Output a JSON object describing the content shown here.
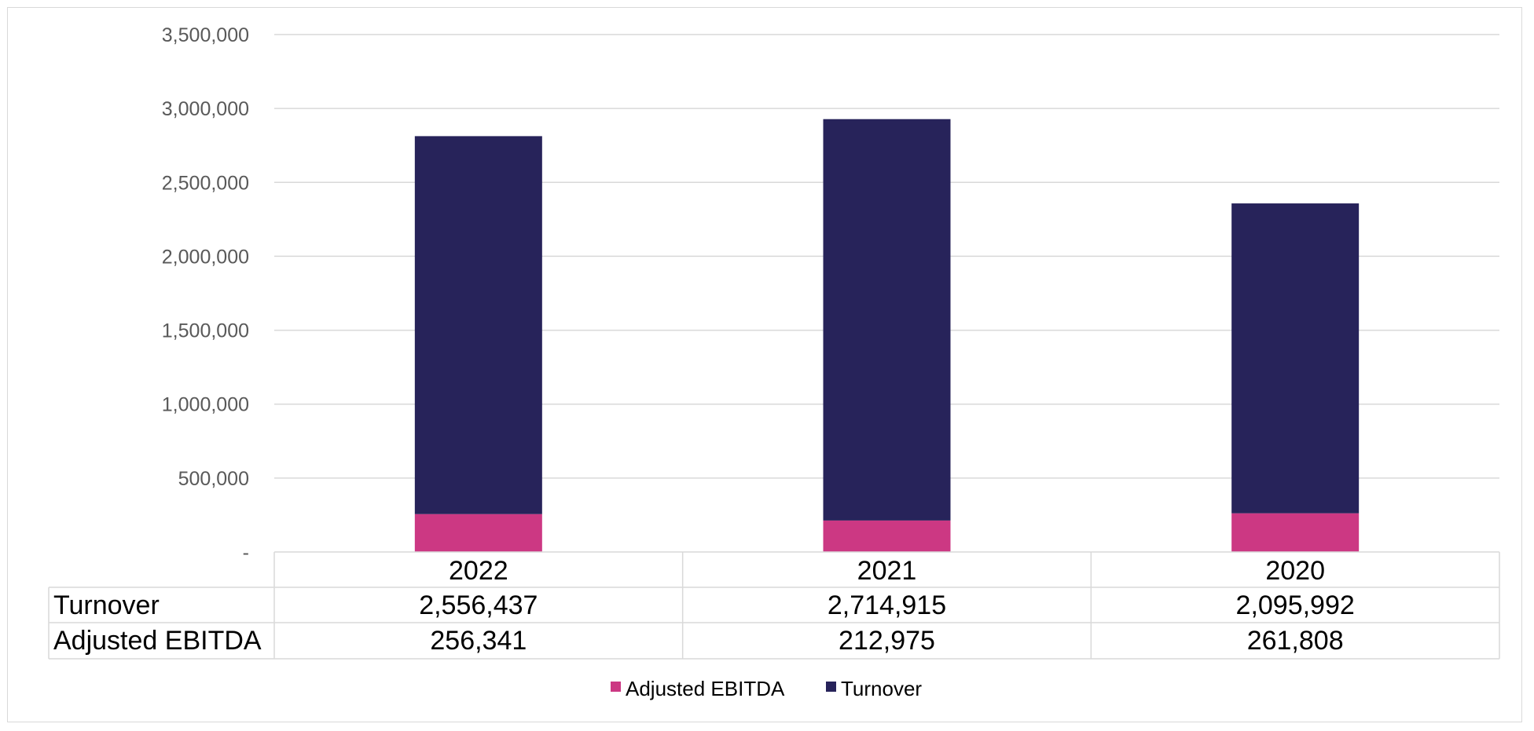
{
  "chart_data": {
    "type": "bar",
    "stacked": true,
    "categories": [
      "2022",
      "2021",
      "2020"
    ],
    "series": [
      {
        "name": "Adjusted EBITDA",
        "values": [
          256341,
          212975,
          261808
        ],
        "color": "#cc3883"
      },
      {
        "name": "Turnover",
        "values": [
          2556437,
          2714915,
          2095992
        ],
        "color": "#27235a"
      }
    ],
    "ylim": [
      0,
      3500000
    ],
    "yticks": [
      0,
      500000,
      1000000,
      1500000,
      2000000,
      2500000,
      3000000,
      3500000
    ],
    "ytick_labels": [
      "-",
      "500,000",
      "1,000,000",
      "1,500,000",
      "2,000,000",
      "2,500,000",
      "3,000,000",
      "3,500,000"
    ],
    "grid": true,
    "legend_position": "bottom",
    "data_table": {
      "rows": [
        {
          "label": "Turnover",
          "values": [
            "2,556,437",
            "2,714,915",
            "2,095,992"
          ]
        },
        {
          "label": "Adjusted EBITDA",
          "values": [
            "256,341",
            "212,975",
            "261,808"
          ]
        }
      ]
    },
    "title": "",
    "xlabel": "",
    "ylabel": ""
  }
}
